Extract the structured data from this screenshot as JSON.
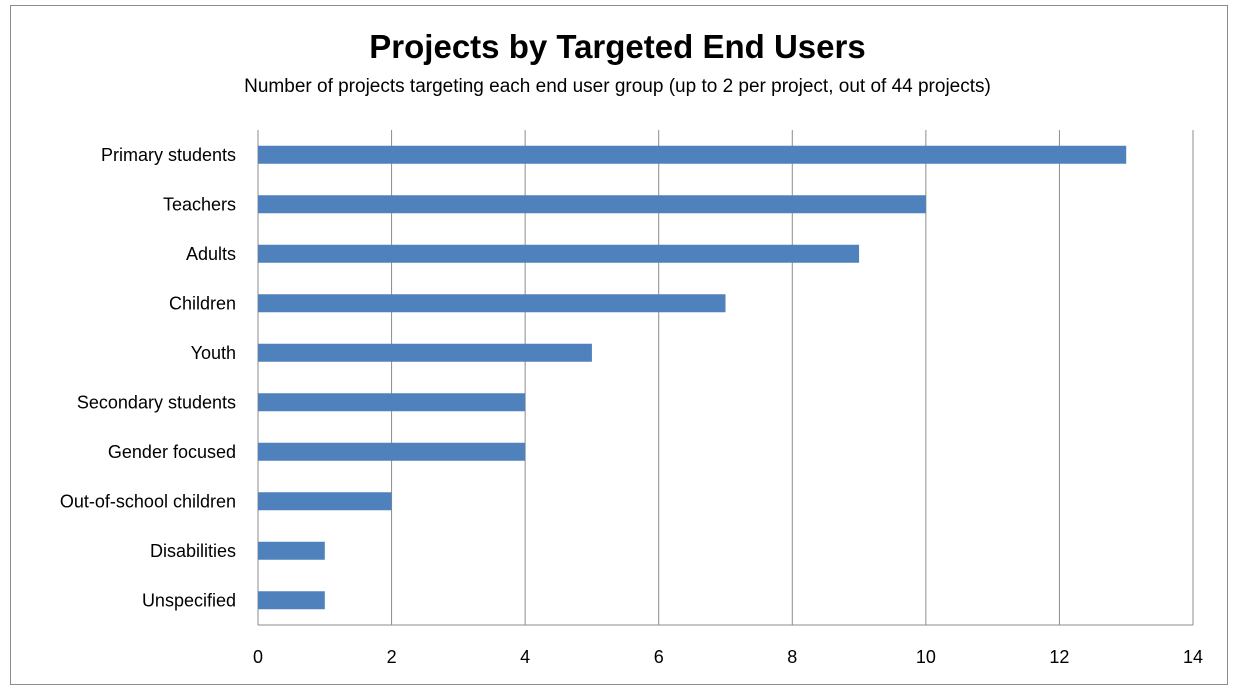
{
  "chart_data": {
    "type": "bar",
    "orientation": "horizontal",
    "title": "Projects by Targeted End Users",
    "subtitle": "Number of projects  targeting each end user  group (up to 2 per project, out of  44 projects)",
    "categories": [
      "Primary students",
      "Teachers",
      "Adults",
      "Children",
      "Youth",
      "Secondary students",
      "Gender focused",
      "Out-of-school children",
      "Disabilities",
      "Unspecified"
    ],
    "values": [
      13,
      10,
      9,
      7,
      5,
      4,
      4,
      2,
      1,
      1
    ],
    "xlim": [
      0,
      14
    ],
    "xticks": [
      "0",
      "2",
      "4",
      "6",
      "8",
      "10",
      "12",
      "14"
    ],
    "xlabel": "",
    "ylabel": "",
    "grid": "vertical",
    "legend": "none",
    "bar_color": "#4F81BD"
  }
}
